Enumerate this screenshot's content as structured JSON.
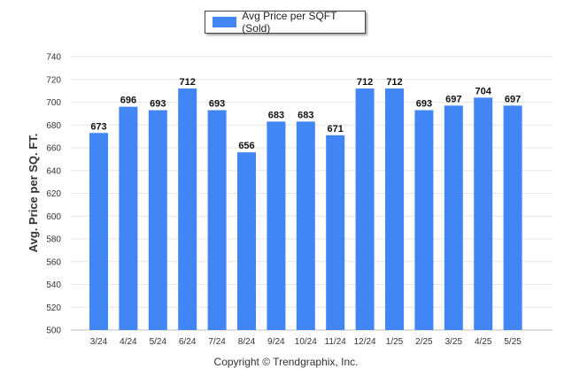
{
  "legend": {
    "label": "Avg Price per SQFT (Sold)"
  },
  "copyright": "Copyright © Trendgraphix, Inc.",
  "colors": {
    "bar": "#4285f4",
    "grid": "#e6e6e6"
  },
  "chart_data": {
    "type": "bar",
    "categories": [
      "3/24",
      "4/24",
      "5/24",
      "6/24",
      "7/24",
      "8/24",
      "9/24",
      "10/24",
      "11/24",
      "12/24",
      "1/25",
      "2/25",
      "3/25",
      "4/25",
      "5/25"
    ],
    "series": [
      {
        "name": "Avg Price per SQFT (Sold)",
        "values": [
          673,
          696,
          693,
          712,
          693,
          656,
          683,
          683,
          671,
          712,
          712,
          693,
          697,
          704,
          697
        ]
      }
    ],
    "ylabel": "Avg. Price per SQ. FT.",
    "xlabel": "",
    "ylim": [
      500,
      740
    ],
    "yticks": [
      500,
      520,
      540,
      560,
      580,
      600,
      620,
      640,
      660,
      680,
      700,
      720,
      740
    ],
    "grid": true,
    "legend_position": "top-center"
  }
}
